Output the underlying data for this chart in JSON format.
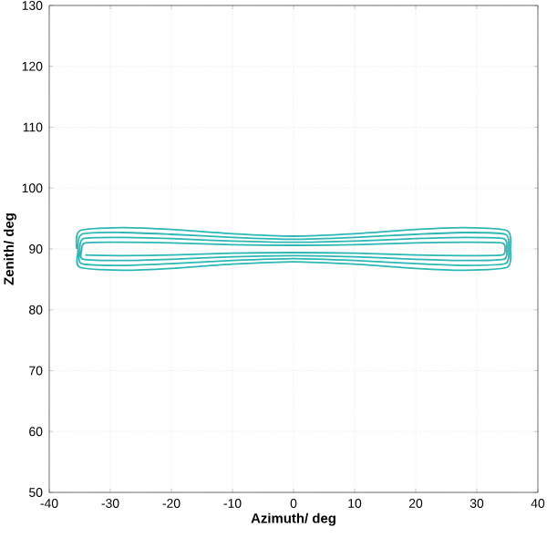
{
  "chart_data": {
    "type": "line",
    "xlabel": "Azimuth/ deg",
    "ylabel": "Zenith/ deg",
    "xlim": [
      -40,
      40
    ],
    "ylim": [
      50,
      130
    ],
    "xticks": [
      -40,
      -30,
      -20,
      -10,
      0,
      10,
      20,
      30,
      40
    ],
    "yticks": [
      50,
      60,
      70,
      80,
      90,
      100,
      110,
      120,
      130
    ],
    "grid": true,
    "series": [
      {
        "color": "#2bb7b3",
        "x": [
          -35.5,
          -35,
          -28,
          -20,
          -10,
          0,
          10,
          20,
          28,
          35,
          35.5,
          35,
          28,
          20,
          10,
          0,
          -10,
          -20,
          -28,
          -35,
          -35.3,
          -34.7,
          -28,
          -20,
          -10,
          0,
          10,
          20,
          28,
          34.7,
          35.2,
          34.7,
          28,
          20,
          10,
          0,
          -10,
          -20,
          -28,
          -34.7,
          -35,
          -34.4,
          -28,
          -20,
          -10,
          0,
          10,
          20,
          28,
          34.4,
          34.9,
          34.4,
          28,
          20,
          10,
          0,
          -10,
          -20,
          -28,
          -34.4,
          -34.7,
          -34.1,
          -28,
          -20,
          -10,
          0,
          10,
          20,
          28,
          34.1,
          34.6,
          34.1,
          28,
          20,
          10,
          0,
          -10,
          -20,
          -28,
          -34.1
        ],
        "values": [
          90,
          93,
          93.5,
          93.2,
          92.5,
          92.1,
          92.5,
          93.2,
          93.5,
          93,
          90,
          87,
          86.5,
          86.8,
          87.5,
          87.9,
          87.5,
          86.8,
          86.5,
          87,
          89.5,
          92.4,
          92.7,
          92.4,
          91.9,
          91.6,
          91.9,
          92.4,
          92.7,
          92.4,
          90,
          87.6,
          87.3,
          87.6,
          88.1,
          88.4,
          88.1,
          87.6,
          87.3,
          87.6,
          89.6,
          91.7,
          91.9,
          91.7,
          91.3,
          91.1,
          91.3,
          91.7,
          91.9,
          91.7,
          90,
          88.3,
          88.1,
          88.3,
          88.7,
          88.9,
          88.7,
          88.3,
          88.1,
          88.3,
          89.7,
          91,
          91.1,
          91,
          90.7,
          90.6,
          90.7,
          91,
          91.1,
          91,
          90,
          89,
          88.9,
          89,
          89.3,
          89.4,
          89.3,
          89,
          88.9,
          89
        ]
      }
    ]
  }
}
